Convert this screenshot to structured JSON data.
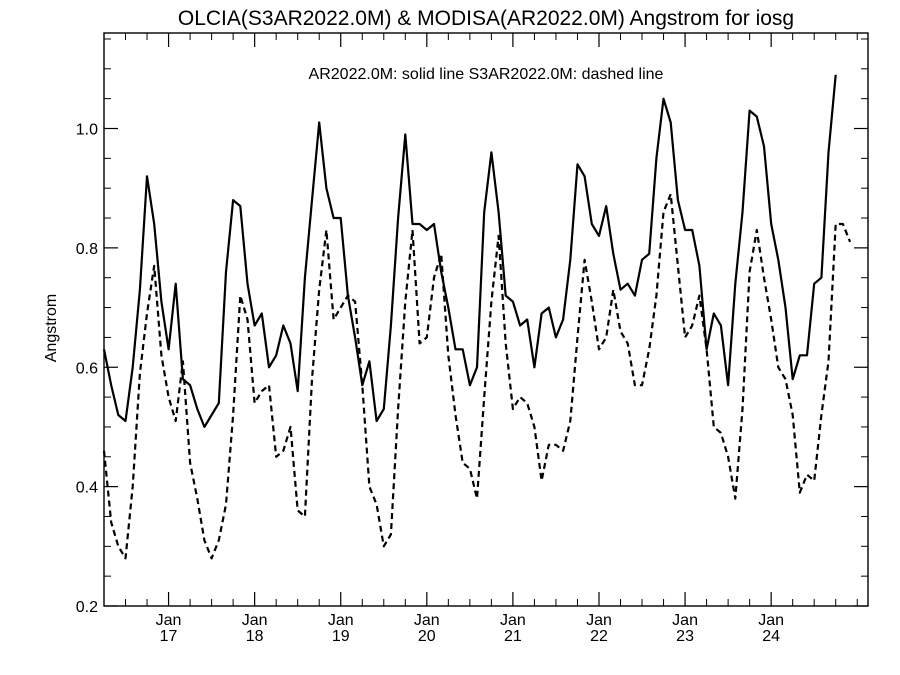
{
  "chart_data": {
    "type": "line",
    "title": "OLCIA(S3AR2022.0M) & MODISA(AR2022.0M)  Angstrom for iosg",
    "annotation": "AR2022.0M: solid line   S3AR2022.0M: dashed line",
    "xlabel": "",
    "ylabel": "Angstrom",
    "xlim": [
      2016.0,
      2024.875
    ],
    "ylim": [
      0.2,
      1.16
    ],
    "yticks": [
      0.2,
      0.4,
      0.6,
      0.8,
      1.0
    ],
    "ytick_labels": [
      "0.2",
      "0.4",
      "0.6",
      "0.8",
      "1.0"
    ],
    "x_major_ticks": [
      {
        "x": 2016.75,
        "label_top": "Jan",
        "label_bottom": "17"
      },
      {
        "x": 2017.75,
        "label_top": "Jan",
        "label_bottom": "18"
      },
      {
        "x": 2018.75,
        "label_top": "Jan",
        "label_bottom": "19"
      },
      {
        "x": 2019.75,
        "label_top": "Jan",
        "label_bottom": "20"
      },
      {
        "x": 2020.75,
        "label_top": "Jan",
        "label_bottom": "21"
      },
      {
        "x": 2021.75,
        "label_top": "Jan",
        "label_bottom": "22"
      },
      {
        "x": 2022.75,
        "label_top": "Jan",
        "label_bottom": "23"
      },
      {
        "x": 2023.75,
        "label_top": "Jan",
        "label_bottom": "24"
      }
    ],
    "x_start": 2016.0,
    "x_step": 0.0833333,
    "series": [
      {
        "name": "AR2022.0M",
        "style": "solid",
        "color": "#000000",
        "values": [
          0.63,
          0.57,
          0.52,
          0.51,
          0.6,
          0.73,
          0.92,
          0.84,
          0.71,
          0.63,
          0.74,
          0.58,
          0.57,
          0.53,
          0.5,
          0.52,
          0.54,
          0.76,
          0.88,
          0.87,
          0.74,
          0.67,
          0.69,
          0.6,
          0.62,
          0.67,
          0.64,
          0.56,
          0.75,
          0.88,
          1.01,
          0.9,
          0.85,
          0.85,
          0.72,
          0.65,
          0.57,
          0.61,
          0.51,
          0.53,
          0.67,
          0.85,
          0.99,
          0.84,
          0.84,
          0.83,
          0.84,
          0.76,
          0.7,
          0.63,
          0.63,
          0.57,
          0.6,
          0.86,
          0.96,
          0.86,
          0.72,
          0.71,
          0.67,
          0.68,
          0.6,
          0.69,
          0.7,
          0.65,
          0.68,
          0.78,
          0.94,
          0.92,
          0.84,
          0.82,
          0.87,
          0.79,
          0.73,
          0.74,
          0.72,
          0.78,
          0.79,
          0.95,
          1.05,
          1.01,
          0.88,
          0.83,
          0.83,
          0.77,
          0.63,
          0.69,
          0.67,
          0.57,
          0.74,
          0.86,
          1.03,
          1.02,
          0.97,
          0.84,
          0.78,
          0.7,
          0.58,
          0.62,
          0.62,
          0.74,
          0.75,
          0.96,
          1.09
        ]
      },
      {
        "name": "S3AR2022.0M",
        "style": "dashed",
        "color": "#000000",
        "values": [
          0.46,
          0.34,
          0.3,
          0.28,
          0.4,
          0.59,
          0.69,
          0.77,
          0.62,
          0.55,
          0.51,
          0.61,
          0.44,
          0.38,
          0.31,
          0.28,
          0.31,
          0.37,
          0.52,
          0.72,
          0.68,
          0.54,
          0.56,
          0.57,
          0.45,
          0.46,
          0.5,
          0.36,
          0.35,
          0.58,
          0.73,
          0.83,
          0.68,
          0.7,
          0.72,
          0.71,
          0.57,
          0.4,
          0.37,
          0.3,
          0.32,
          0.53,
          0.71,
          0.83,
          0.64,
          0.65,
          0.75,
          0.79,
          0.62,
          0.52,
          0.44,
          0.43,
          0.38,
          0.55,
          0.71,
          0.82,
          0.64,
          0.53,
          0.55,
          0.54,
          0.5,
          0.41,
          0.47,
          0.47,
          0.46,
          0.51,
          0.65,
          0.78,
          0.71,
          0.63,
          0.65,
          0.73,
          0.66,
          0.64,
          0.57,
          0.57,
          0.63,
          0.72,
          0.86,
          0.89,
          0.77,
          0.65,
          0.67,
          0.72,
          0.63,
          0.5,
          0.49,
          0.45,
          0.38,
          0.53,
          0.76,
          0.83,
          0.75,
          0.68,
          0.6,
          0.58,
          0.52,
          0.39,
          0.42,
          0.41,
          0.52,
          0.61,
          0.84,
          0.84,
          0.81
        ]
      }
    ],
    "grid": false,
    "legend": "none"
  }
}
